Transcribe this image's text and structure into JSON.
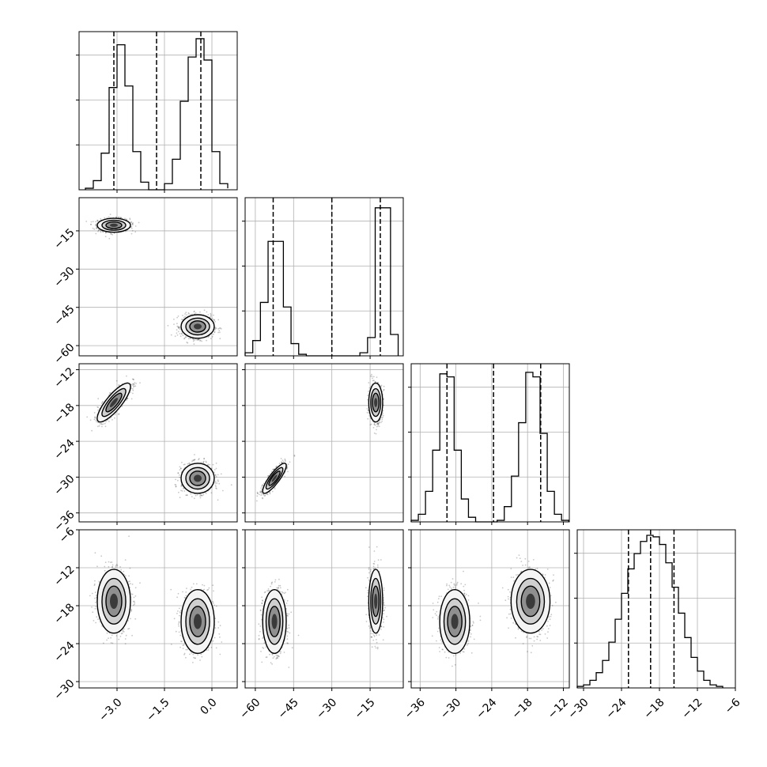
{
  "chart_data": {
    "type": "corner",
    "title": "",
    "grid": true,
    "params": [
      {
        "range": [
          -4.2,
          0.8
        ],
        "ticks": [
          -3.0,
          -1.5,
          0.0
        ],
        "tick_labels": [
          "−3.0",
          "−1.5",
          "0.0"
        ],
        "quantiles": [
          -3.1,
          -1.75,
          -0.35
        ]
      },
      {
        "range": [
          -64,
          -2
        ],
        "ticks": [
          -60,
          -45,
          -30,
          -15
        ],
        "tick_labels": [
          "−60",
          "−45",
          "−30",
          "−15"
        ],
        "quantiles": [
          -53,
          -30,
          -11
        ]
      },
      {
        "range": [
          -37.5,
          -11
        ],
        "ticks": [
          -36,
          -30,
          -24,
          -18,
          -12
        ],
        "tick_labels": [
          "−36",
          "−30",
          "−24",
          "−18",
          "−12"
        ],
        "quantiles": [
          -31.5,
          -23.7,
          -15.8
        ]
      },
      {
        "range": [
          -31,
          -6
        ],
        "ticks": [
          -30,
          -24,
          -18,
          -12,
          -6
        ],
        "tick_labels": [
          "−30",
          "−24",
          "−18",
          "−12",
          "−6"
        ],
        "quantiles": [
          -22.9,
          -19.4,
          -15.7
        ]
      }
    ],
    "histograms": [
      {
        "edges": [
          -4.0,
          -3.75,
          -3.5,
          -3.25,
          -3.0,
          -2.75,
          -2.5,
          -2.25,
          -2.0,
          -1.75,
          -1.5,
          -1.25,
          -1.0,
          -0.75,
          -0.5,
          -0.25,
          0.0,
          0.25,
          0.5
        ],
        "counts": [
          0.01,
          0.06,
          0.24,
          0.67,
          0.95,
          0.68,
          0.25,
          0.05,
          0.0,
          0.0,
          0.04,
          0.2,
          0.58,
          0.87,
          0.99,
          0.85,
          0.25,
          0.04,
          0.01
        ]
      },
      {
        "edges": [
          -64,
          -61,
          -58,
          -55,
          -52,
          -49,
          -46,
          -43,
          -40,
          -37,
          -34,
          -31,
          -28,
          -25,
          -22,
          -19,
          -16,
          -13,
          -10,
          -7,
          -4
        ],
        "counts": [
          0.02,
          0.1,
          0.35,
          0.75,
          0.75,
          0.32,
          0.08,
          0.01,
          0.0,
          0.0,
          0.0,
          0.0,
          0.0,
          0.0,
          0.0,
          0.02,
          0.12,
          0.97,
          0.97,
          0.14
        ]
      },
      {
        "edges": [
          -37.5,
          -36.3,
          -35.1,
          -33.9,
          -32.7,
          -31.5,
          -30.3,
          -29.1,
          -27.9,
          -26.7,
          -25.5,
          -24.3,
          -23.1,
          -21.9,
          -20.7,
          -19.5,
          -18.3,
          -17.1,
          -15.9,
          -14.7,
          -13.5,
          -12.3,
          -11.1
        ],
        "counts": [
          0.01,
          0.05,
          0.2,
          0.47,
          0.97,
          0.95,
          0.47,
          0.15,
          0.03,
          0.0,
          0.0,
          0.0,
          0.01,
          0.1,
          0.3,
          0.65,
          0.98,
          0.95,
          0.58,
          0.2,
          0.05,
          0.01
        ]
      },
      {
        "edges": [
          -31,
          -30,
          -29,
          -28,
          -27,
          -26,
          -25,
          -24,
          -23,
          -22,
          -21,
          -20,
          -19,
          -18,
          -17,
          -16,
          -15,
          -14,
          -13,
          -12,
          -11,
          -10,
          -9,
          -8
        ],
        "counts": [
          0.01,
          0.02,
          0.05,
          0.1,
          0.18,
          0.3,
          0.45,
          0.62,
          0.78,
          0.88,
          0.96,
          1.0,
          0.99,
          0.94,
          0.82,
          0.66,
          0.49,
          0.33,
          0.2,
          0.11,
          0.05,
          0.02,
          0.01
        ]
      }
    ],
    "clusters": [
      {
        "means": [
          -3.1,
          -12.8,
          -17.5,
          -17.3
        ],
        "sds": [
          0.25,
          1.3,
          1.55,
          2.4
        ],
        "corr": [
          [
            0,
            2,
            0.82
          ]
        ]
      },
      {
        "means": [
          -0.45,
          -52.5,
          -30.2,
          -20.5
        ],
        "sds": [
          0.25,
          2.2,
          1.2,
          2.4
        ],
        "corr": [
          [
            1,
            2,
            0.85
          ]
        ]
      }
    ]
  }
}
